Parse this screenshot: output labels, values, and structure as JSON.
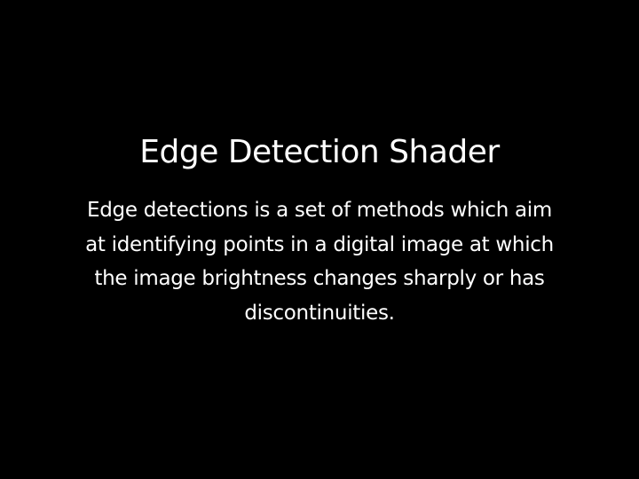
{
  "slide": {
    "title": "Edge Detection Shader",
    "body": "Edge detections is a set of methods which aim at identifying points in a digital image at which the image brightness changes sharply or has discontinuities."
  },
  "colors": {
    "background": "#000000",
    "text": "#ffffff"
  }
}
